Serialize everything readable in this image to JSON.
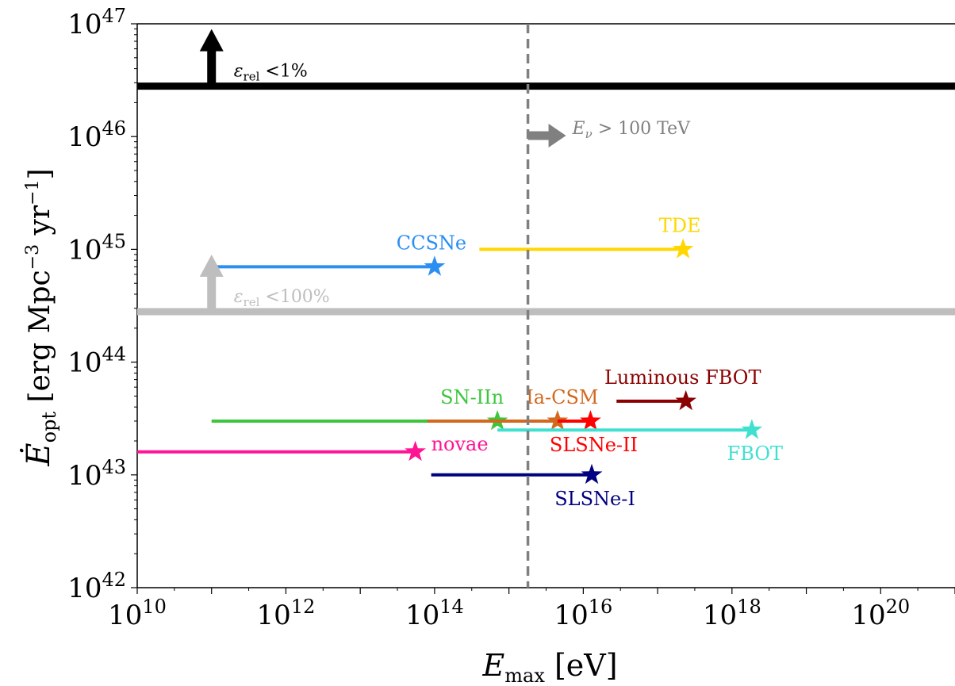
{
  "chart_data": {
    "type": "scatter",
    "xlabel": "E_max [eV]",
    "ylabel": "Ė_opt [erg Mpc^-3 yr^-1]",
    "xscale": "log",
    "yscale": "log",
    "xlim": [
      10000000000.0,
      1e+21
    ],
    "ylim": [
      1e+42,
      1e+47
    ],
    "x_ticks": [
      {
        "base": "10",
        "exp": "10",
        "value": 10000000000.0
      },
      {
        "base": "10",
        "exp": "12",
        "value": 1000000000000.0
      },
      {
        "base": "10",
        "exp": "14",
        "value": 100000000000000.0
      },
      {
        "base": "10",
        "exp": "16",
        "value": 1e+16
      },
      {
        "base": "10",
        "exp": "18",
        "value": 1e+18
      },
      {
        "base": "10",
        "exp": "20",
        "value": 1e+20
      }
    ],
    "y_ticks": [
      {
        "base": "10",
        "exp": "42",
        "value": 1e+42
      },
      {
        "base": "10",
        "exp": "43",
        "value": 1e+43
      },
      {
        "base": "10",
        "exp": "44",
        "value": 1e+44
      },
      {
        "base": "10",
        "exp": "45",
        "value": 1e+45
      },
      {
        "base": "10",
        "exp": "46",
        "value": 1e+46
      },
      {
        "base": "10",
        "exp": "47",
        "value": 1e+47
      }
    ],
    "series": [
      {
        "name": "CCSNe",
        "color": "#2b8ff2",
        "x_min": 110000000000.0,
        "x_max": 100000000000000.0,
        "y": 7e+44,
        "label_pos": "above"
      },
      {
        "name": "TDE",
        "color": "#ffd700",
        "x_min": 400000000000000.0,
        "x_max": 2.2e+17,
        "y": 1e+45,
        "label_pos": "above"
      },
      {
        "name": "Luminous FBOT",
        "color": "#8b0000",
        "x_min": 2.8e+16,
        "x_max": 2.4e+17,
        "y": 4.5e+43,
        "label_pos": "above"
      },
      {
        "name": "SN-IIn",
        "color": "#3cc63c",
        "x_min": 100000000000.0,
        "x_max": 700000000000000.0,
        "y": 3e+43,
        "label_pos": "above"
      },
      {
        "name": "Ia-CSM",
        "color": "#d2691e",
        "x_min": 80000000000000.0,
        "x_max": 4500000000000000.0,
        "y": 3e+43,
        "label_pos": "above"
      },
      {
        "name": "SLSNe-II",
        "color": "#ff0000",
        "x_min": 4500000000000000.0,
        "x_max": 1.25e+16,
        "y": 3e+43,
        "label_pos": "below"
      },
      {
        "name": "FBOT",
        "color": "#40e0d0",
        "x_min": 700000000000000.0,
        "x_max": 1.85e+18,
        "y": 2.5e+43,
        "label_pos": "below"
      },
      {
        "name": "novae",
        "color": "#ff1493",
        "x_min": 10000000000.0,
        "x_max": 55000000000000.0,
        "y": 1.6e+43,
        "label_pos": "right"
      },
      {
        "name": "SLSNe-I",
        "color": "#000080",
        "x_min": 90000000000000.0,
        "x_max": 1.3e+16,
        "y": 1e+43,
        "label_pos": "below"
      }
    ],
    "hlines": [
      {
        "y": 2.8e+46,
        "color": "#000000",
        "arrow_x": 100000000000.0,
        "label_sym": "ε",
        "label_sub": "rel",
        "label_rest": " <1%"
      },
      {
        "y": 2.8e+44,
        "color": "#bebebe",
        "arrow_x": 100000000000.0,
        "label_sym": "ε",
        "label_sub": "rel",
        "label_rest": " <100%"
      }
    ],
    "vline": {
      "x": 1800000000000000.0,
      "color": "#808080",
      "style": "dashed",
      "label_sym": "E",
      "label_sub": "ν",
      "label_rest": " > 100 TeV"
    }
  }
}
